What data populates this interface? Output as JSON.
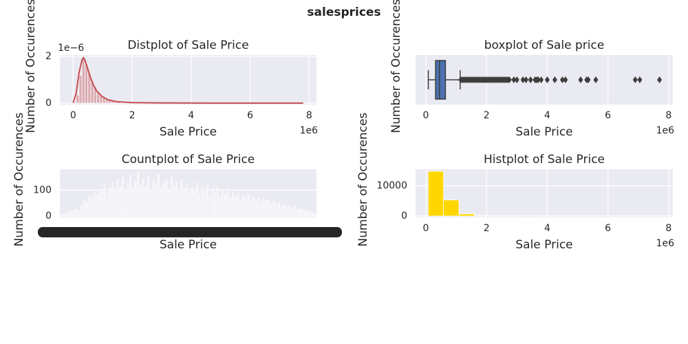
{
  "title": "salesprices",
  "chart_data": [
    {
      "type": "histogram",
      "title": "Distplot of Sale Price",
      "xlabel": "Sale Price",
      "ylabel": "Number of Occurences",
      "x_offset_text": "1e6",
      "y_offset_text": "1e−6",
      "grid": true,
      "color": "#c44e52",
      "bar_opacity": 0.4,
      "kde_color": "#c44e52",
      "bins": [
        0,
        100000,
        200000,
        300000,
        400000,
        500000,
        600000,
        700000,
        800000,
        900000,
        1000000,
        1100000,
        1200000,
        1300000,
        1400000,
        1500000,
        1600000
      ],
      "values": [
        5e-08,
        3.5e-07,
        1.2e-06,
        1.9e-06,
        1.7e-06,
        1.3e-06,
        9.5e-07,
        7e-07,
        5e-07,
        3.5e-07,
        2.5e-07,
        1.8e-07,
        1.3e-07,
        9e-08,
        6e-08,
        4e-08
      ],
      "kde_x": [
        0,
        100000,
        200000,
        300000,
        350000,
        400000,
        500000,
        600000,
        700000,
        800000,
        1000000,
        1200000,
        1500000,
        2000000,
        3000000,
        4000000,
        5000000,
        6000000,
        7000000,
        7800000
      ],
      "kde_values": [
        2e-08,
        4e-07,
        1.3e-06,
        1.85e-06,
        1.95e-06,
        1.85e-06,
        1.45e-06,
        1.05e-06,
        7.5e-07,
        5.2e-07,
        2.7e-07,
        1.4e-07,
        6e-08,
        2.5e-08,
        1e-08,
        6e-09,
        4e-09,
        3e-09,
        2e-09,
        1e-09
      ],
      "xlim": [
        -450000,
        8250000
      ],
      "xticks": [
        0,
        {
          "value": 2000000,
          "label": "2"
        },
        {
          "value": 4000000,
          "label": "4"
        },
        {
          "value": 6000000,
          "label": "6"
        },
        {
          "value": 8000000,
          "label": "8"
        }
      ],
      "ylim": [
        -6e-08,
        2.06e-06
      ],
      "yticks": [
        0,
        {
          "value": 2e-06,
          "label": "2"
        }
      ]
    },
    {
      "type": "box",
      "title": "boxplot of Sale price",
      "xlabel": "Sale Price",
      "ylabel": "Number of Occurences",
      "x_offset_text": "1e6",
      "grid": true,
      "color": "#4c72b0",
      "line_color": "#3d3d3d",
      "box": {
        "whisker_low": 80000,
        "q1": 320000,
        "median": 450000,
        "q3": 645000,
        "whisker_high": 1130000
      },
      "fliers": [
        1150000,
        1200000,
        1250000,
        1300000,
        1350000,
        1400000,
        1450000,
        1500000,
        1550000,
        1600000,
        1650000,
        1700000,
        1750000,
        1800000,
        1850000,
        1900000,
        1950000,
        2000000,
        2050000,
        2100000,
        2150000,
        2200000,
        2250000,
        2300000,
        2350000,
        2400000,
        2450000,
        2500000,
        2550000,
        2600000,
        2650000,
        2700000,
        2750000,
        2900000,
        3000000,
        3200000,
        3300000,
        3450000,
        3600000,
        3650000,
        3700000,
        3800000,
        4000000,
        4250000,
        4500000,
        4600000,
        5100000,
        5300000,
        5350000,
        5600000,
        6900000,
        7050000,
        7700000
      ],
      "xlim": [
        -340000,
        8140000
      ],
      "xticks": [
        0,
        {
          "value": 2000000,
          "label": "2"
        },
        {
          "value": 4000000,
          "label": "4"
        },
        {
          "value": 6000000,
          "label": "6"
        },
        {
          "value": 8000000,
          "label": "8"
        }
      ]
    },
    {
      "type": "count",
      "title": "Countplot of Sale Price",
      "xlabel": "Sale Price",
      "ylabel": "Number of Occurences",
      "grid": true,
      "color": "#f7f7fa",
      "values": [
        8,
        12,
        10,
        15,
        20,
        25,
        30,
        22,
        45,
        60,
        55,
        80,
        75,
        90,
        85,
        100,
        95,
        120,
        88,
        110,
        130,
        105,
        140,
        115,
        150,
        98,
        125,
        160,
        110,
        135,
        170,
        120,
        145,
        118,
        155,
        100,
        138,
        125,
        160,
        112,
        128,
        142,
        105,
        150,
        118,
        132,
        95,
        140,
        108,
        125,
        90,
        115,
        100,
        130,
        85,
        110,
        95,
        120,
        80,
        105,
        90,
        112,
        75,
        98,
        85,
        100,
        70,
        92,
        78,
        88,
        65,
        80,
        72,
        85,
        60,
        75,
        66,
        70,
        55,
        68,
        60,
        62,
        50,
        58,
        45,
        52,
        40,
        48,
        35,
        42,
        30,
        38,
        28,
        32,
        24,
        26,
        20,
        18,
        14,
        10
      ],
      "ylim": [
        -5,
        180
      ],
      "yticks": [
        0,
        100
      ]
    },
    {
      "type": "histogram",
      "title": "Histplot of Sale Price",
      "xlabel": "Sale Price",
      "ylabel": "Number of Occurences",
      "x_offset_text": "1e6",
      "grid": true,
      "color": "#ffd700",
      "bar_opacity": 1,
      "bins": [
        75000,
        583000,
        1091000,
        1599000,
        2107000,
        2615000,
        3123000,
        3631000,
        4139000,
        4647000,
        5155000,
        5663000,
        6171000,
        6679000,
        7187000,
        7695000
      ],
      "values": [
        14800,
        5300,
        700,
        180,
        60,
        25,
        10,
        6,
        3,
        2,
        1,
        0,
        0,
        1,
        2
      ],
      "xlim": [
        -340000,
        8140000
      ],
      "xticks": [
        0,
        {
          "value": 2000000,
          "label": "2"
        },
        {
          "value": 4000000,
          "label": "4"
        },
        {
          "value": 6000000,
          "label": "6"
        },
        {
          "value": 8000000,
          "label": "8"
        }
      ],
      "ylim": [
        -450,
        15450
      ],
      "yticks": [
        0,
        10000
      ]
    }
  ]
}
